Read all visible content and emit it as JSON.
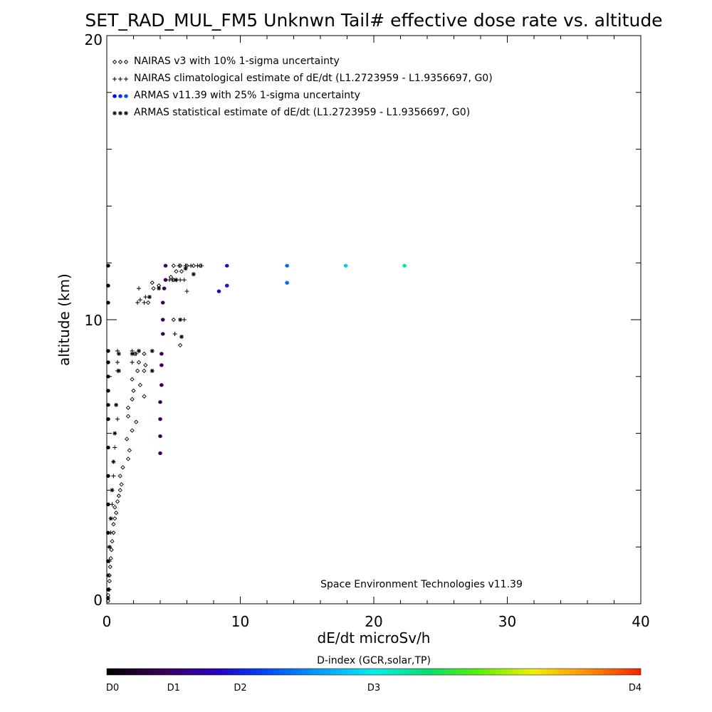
{
  "chart_data": {
    "type": "scatter",
    "title": "SET_RAD_MUL_FM5 Unknwn Tail#  effective dose rate vs. altitude",
    "xlabel": "dE/dt microSv/h",
    "ylabel": "altitude (km)",
    "xlim": [
      0,
      40
    ],
    "ylim": [
      0,
      20
    ],
    "x_ticks": [
      "0",
      "10",
      "20",
      "30",
      "40"
    ],
    "y_ticks": [
      "0",
      "10",
      "20"
    ],
    "legend_placement": "top-left",
    "grid": false,
    "legend": [
      {
        "marker": "diamond",
        "label": "NAIRAS v3 with 10% 1-sigma uncertainty"
      },
      {
        "marker": "plus",
        "label": "NAIRAS climatological estimate of dE/dt (L1.2723959 - L1.9356697, G0)"
      },
      {
        "marker": "dot",
        "label": "ARMAS v11.39 with 25% 1-sigma uncertainty"
      },
      {
        "marker": "asterisk",
        "label": "ARMAS statistical estimate of dE/dt (L1.2723959 - L1.9356697, G0)"
      }
    ],
    "credit": "Space Environment Technologies v11.39",
    "colorbar": {
      "title": "D-index (GCR,solar,TP)",
      "labels": [
        {
          "text": "D0",
          "value": 0
        },
        {
          "text": "D1",
          "value": 5
        },
        {
          "text": "D2",
          "value": 10
        },
        {
          "text": "D3",
          "value": 20
        },
        {
          "text": "D4",
          "value": 40
        }
      ]
    },
    "series": [
      {
        "name": "NAIRAS v3 with 10% 1-sigma uncertainty",
        "marker": "diamond",
        "points": [
          [
            0.1,
            0.1
          ],
          [
            0.1,
            0.3
          ],
          [
            0.15,
            0.5
          ],
          [
            0.2,
            0.8
          ],
          [
            0.2,
            1.0
          ],
          [
            0.25,
            1.3
          ],
          [
            0.3,
            1.6
          ],
          [
            0.35,
            1.9
          ],
          [
            0.4,
            2.2
          ],
          [
            0.5,
            2.5
          ],
          [
            0.5,
            2.8
          ],
          [
            0.6,
            3.0
          ],
          [
            0.7,
            3.2
          ],
          [
            0.6,
            3.4
          ],
          [
            0.8,
            3.6
          ],
          [
            0.9,
            3.8
          ],
          [
            1.0,
            4.0
          ],
          [
            1.1,
            4.2
          ],
          [
            1.0,
            4.5
          ],
          [
            1.2,
            4.8
          ],
          [
            1.6,
            5.1
          ],
          [
            1.7,
            5.4
          ],
          [
            1.5,
            5.8
          ],
          [
            1.9,
            6.1
          ],
          [
            2.2,
            6.4
          ],
          [
            1.6,
            6.6
          ],
          [
            1.6,
            6.9
          ],
          [
            1.9,
            7.2
          ],
          [
            2.0,
            7.5
          ],
          [
            2.8,
            7.3
          ],
          [
            2.5,
            7.7
          ],
          [
            1.9,
            7.9
          ],
          [
            2.3,
            8.2
          ],
          [
            2.8,
            8.2
          ],
          [
            2.4,
            8.5
          ],
          [
            2.9,
            8.4
          ],
          [
            2.1,
            8.8
          ],
          [
            2.8,
            8.8
          ],
          [
            3.1,
            10.6
          ],
          [
            3.5,
            11.1
          ],
          [
            3.9,
            11.2
          ],
          [
            3.4,
            11.3
          ],
          [
            5.5,
            9.1
          ],
          [
            5.0,
            10.0
          ],
          [
            5.0,
            11.4
          ],
          [
            4.8,
            11.5
          ],
          [
            5.2,
            11.7
          ],
          [
            5.6,
            11.7
          ],
          [
            5.0,
            11.9
          ],
          [
            5.5,
            11.9
          ],
          [
            6.0,
            11.9
          ],
          [
            6.5,
            11.9
          ],
          [
            7.0,
            11.9
          ]
        ]
      },
      {
        "name": "NAIRAS climatological estimate of dE/dt (L1.2723959 - L1.9356697, G0)",
        "marker": "plus",
        "points": [
          [
            0.2,
            0.5
          ],
          [
            0.2,
            1.5
          ],
          [
            0.3,
            2.5
          ],
          [
            0.4,
            3.5
          ],
          [
            0.5,
            4.5
          ],
          [
            0.6,
            5.5
          ],
          [
            0.8,
            6.5
          ],
          [
            0.8,
            8.2
          ],
          [
            0.8,
            8.5
          ],
          [
            0.8,
            8.9
          ],
          [
            1.9,
            8.9
          ],
          [
            1.9,
            8.5
          ],
          [
            2.2,
            8.8
          ],
          [
            2.3,
            10.6
          ],
          [
            2.5,
            10.7
          ],
          [
            2.4,
            11.1
          ],
          [
            2.9,
            10.8
          ],
          [
            2.8,
            10.6
          ],
          [
            4.7,
            11.4
          ],
          [
            4.9,
            11.4
          ],
          [
            5.2,
            11.4
          ],
          [
            5.5,
            11.4
          ],
          [
            5.8,
            11.4
          ],
          [
            6.0,
            11.0
          ],
          [
            5.1,
            9.5
          ],
          [
            5.8,
            10.0
          ],
          [
            5.4,
            11.9
          ],
          [
            5.9,
            11.9
          ],
          [
            6.3,
            11.9
          ],
          [
            6.8,
            11.9
          ],
          [
            7.1,
            11.9
          ]
        ]
      },
      {
        "name": "ARMAS v11.39 with 25% 1-sigma uncertainty",
        "marker": "dot",
        "points": [
          [
            0.1,
            0.5
          ],
          [
            0.1,
            1.5
          ],
          [
            0.1,
            2.5
          ],
          [
            0.1,
            3.5
          ],
          [
            0.1,
            4.5
          ],
          [
            0.1,
            5.5
          ],
          [
            0.1,
            6.5
          ],
          [
            0.1,
            7.0
          ],
          [
            0.1,
            7.5
          ],
          [
            0.1,
            8.0
          ],
          [
            0.1,
            8.5
          ],
          [
            0.1,
            8.9
          ],
          [
            0.1,
            10.6
          ],
          [
            0.1,
            11.2
          ],
          [
            0.1,
            11.9
          ],
          [
            4.0,
            5.3
          ],
          [
            4.0,
            5.9
          ],
          [
            4.0,
            6.5
          ],
          [
            4.0,
            7.1
          ],
          [
            4.1,
            7.7
          ],
          [
            4.1,
            8.4
          ],
          [
            4.1,
            8.8
          ],
          [
            4.2,
            9.5
          ],
          [
            4.2,
            10.0
          ],
          [
            4.2,
            10.6
          ],
          [
            4.3,
            11.1
          ],
          [
            4.4,
            11.4
          ],
          [
            4.4,
            11.9
          ],
          [
            8.4,
            11.0
          ],
          [
            9.0,
            11.2
          ],
          [
            9.0,
            11.9
          ],
          [
            13.5,
            11.3
          ],
          [
            13.5,
            11.9
          ],
          [
            17.9,
            11.9
          ],
          [
            22.3,
            11.9
          ]
        ],
        "dindex": [
          0.2,
          0.2,
          0.2,
          0.2,
          0.2,
          0.2,
          0.2,
          0.2,
          0.2,
          0.2,
          0.2,
          0.2,
          0.2,
          0.2,
          0.2,
          4.0,
          4.0,
          4.0,
          4.0,
          4.1,
          4.1,
          4.1,
          4.2,
          4.2,
          4.2,
          4.3,
          4.4,
          4.4,
          8.4,
          9.0,
          9.0,
          13.5,
          13.5,
          17.9,
          22.3
        ]
      },
      {
        "name": "ARMAS statistical estimate of dE/dt (L1.2723959 - L1.9356697, G0)",
        "marker": "asterisk",
        "points": [
          [
            0.1,
            0.2
          ],
          [
            0.1,
            1.0
          ],
          [
            0.2,
            2.0
          ],
          [
            0.3,
            3.0
          ],
          [
            0.4,
            4.0
          ],
          [
            0.5,
            5.0
          ],
          [
            0.6,
            6.0
          ],
          [
            0.7,
            7.0
          ],
          [
            0.9,
            8.2
          ],
          [
            0.9,
            8.8
          ],
          [
            1.9,
            8.8
          ],
          [
            2.4,
            8.9
          ],
          [
            3.4,
            8.9
          ],
          [
            3.4,
            8.2
          ],
          [
            3.2,
            10.8
          ],
          [
            3.9,
            11.1
          ],
          [
            5.2,
            11.4
          ],
          [
            5.6,
            9.4
          ],
          [
            5.5,
            10.0
          ],
          [
            5.9,
            11.8
          ],
          [
            6.5,
            11.6
          ]
        ]
      }
    ]
  }
}
